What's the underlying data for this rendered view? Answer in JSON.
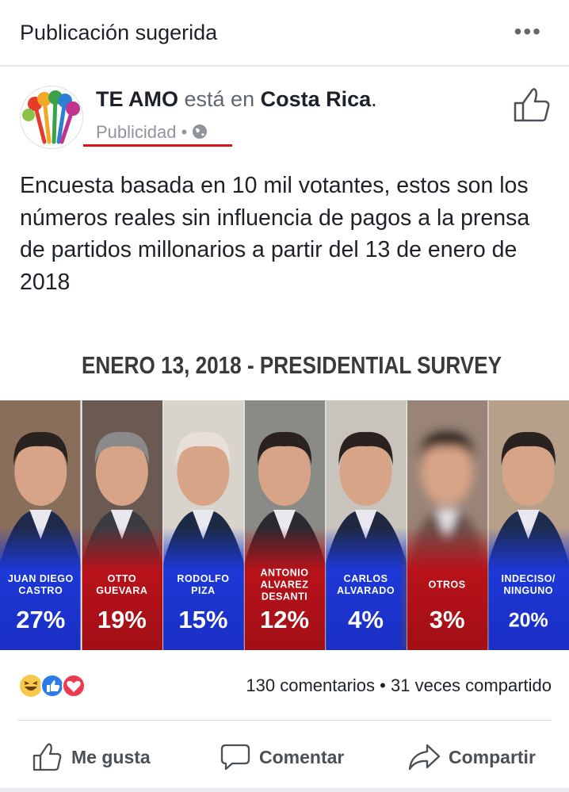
{
  "header": {
    "title": "Publicación sugerida"
  },
  "post": {
    "author": "TE AMO",
    "location_prefix": "está en",
    "location": "Costa Rica",
    "location_suffix": ".",
    "audience": "Publicidad",
    "audience_separator": "•",
    "text": "Encuesta basada en 10 mil votantes, estos son los números reales sin influencia de pagos a la prensa de partidos millonarios a partir del 13 de enero de 2018"
  },
  "image": {
    "title": "ENERO 13, 2018 - PRESIDENTIAL SURVEY",
    "candidates": [
      {
        "name": [
          "JUAN DIEGO",
          "CASTRO"
        ],
        "percent": "27%"
      },
      {
        "name": [
          "OTTO",
          "GUEVARA"
        ],
        "percent": "19%"
      },
      {
        "name": [
          "RODOLFO",
          "PIZA"
        ],
        "percent": "15%"
      },
      {
        "name": [
          "ANTONIO",
          "ALVAREZ",
          "DESANTI"
        ],
        "percent": "12%"
      },
      {
        "name": [
          "CARLOS",
          "ALVARADO"
        ],
        "percent": "4%"
      },
      {
        "name": [
          "OTROS"
        ],
        "percent": "3%"
      },
      {
        "name": [
          "INDECISO/",
          "NINGUNO"
        ],
        "percent": "20%"
      }
    ]
  },
  "stats": {
    "comments": "130 comentarios",
    "separator": "•",
    "shares": "31 veces compartido"
  },
  "actions": [
    "Me gusta",
    "Comentar",
    "Compartir"
  ]
}
